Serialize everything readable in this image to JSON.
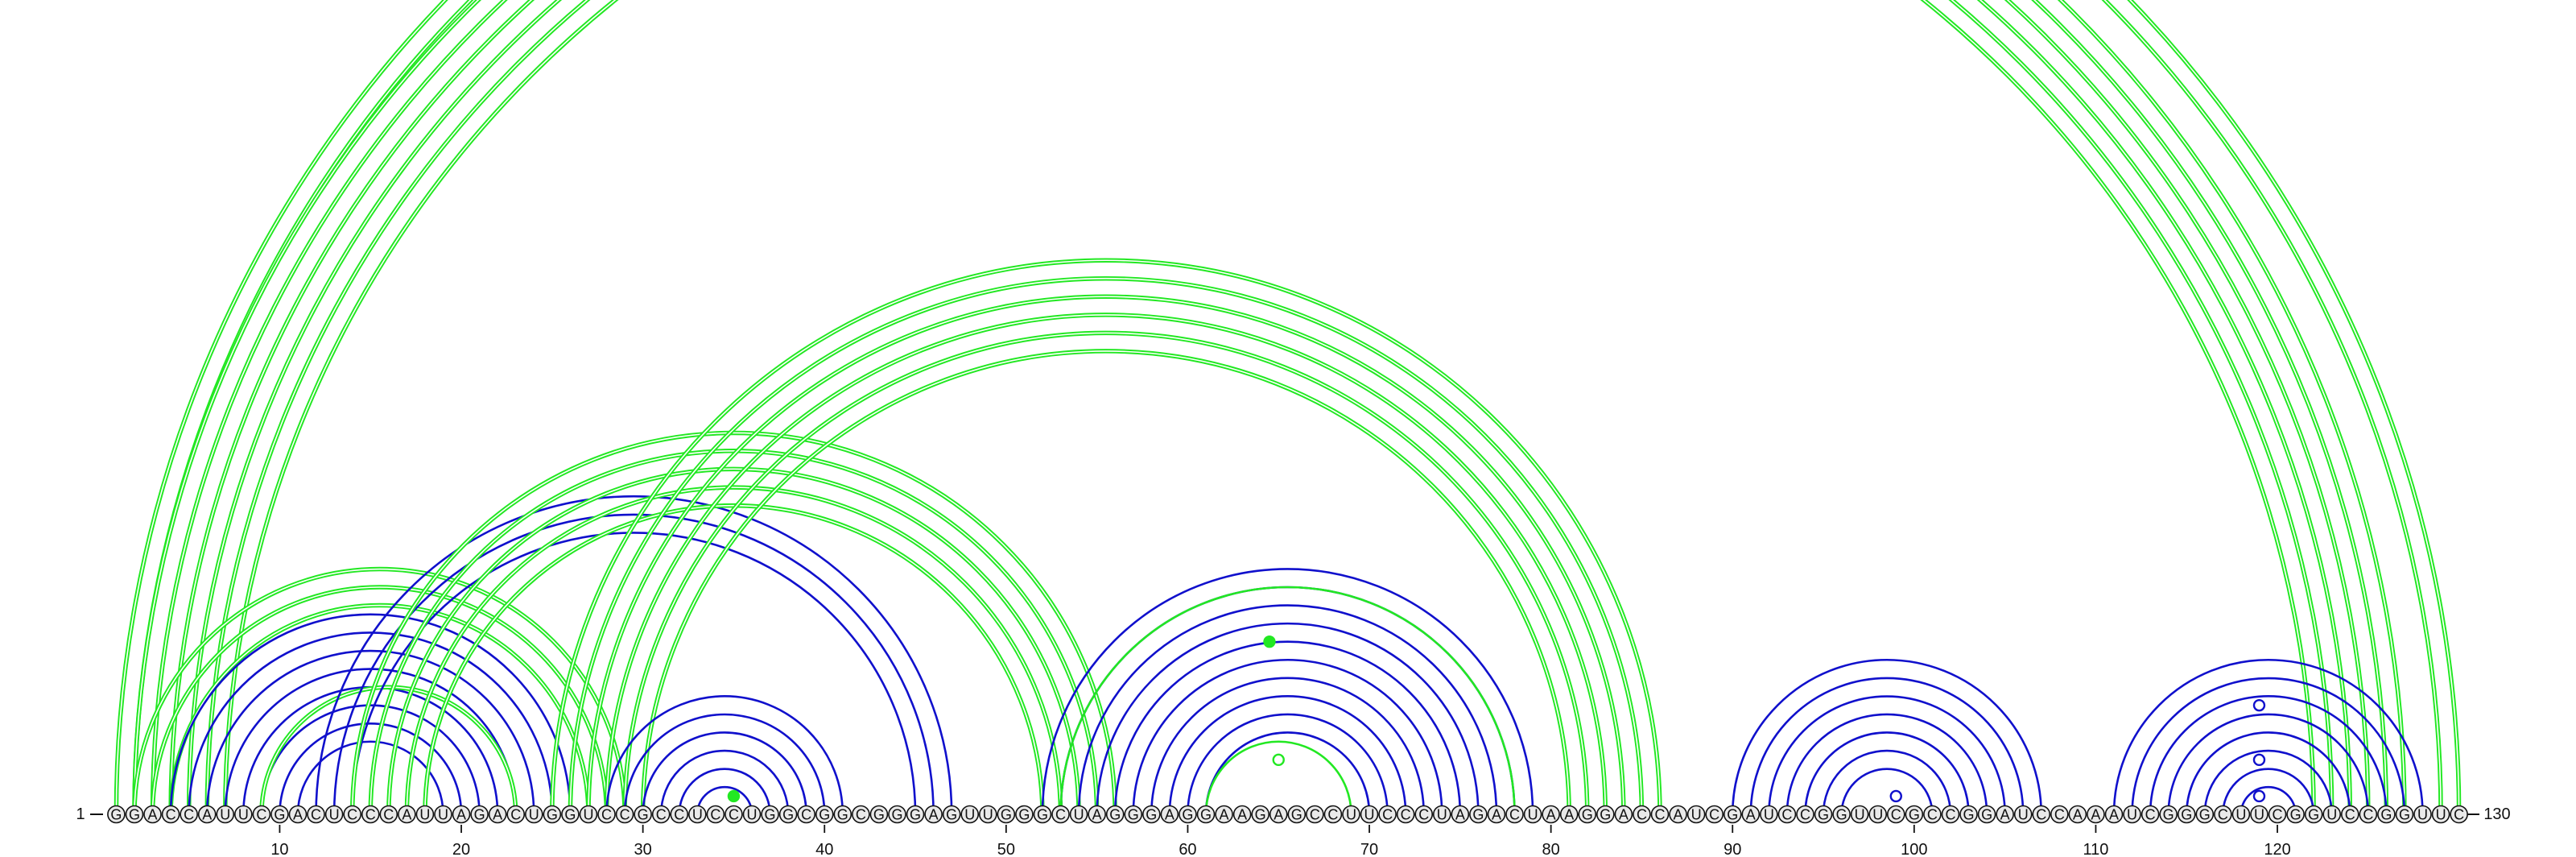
{
  "sequence": "GGACCAUUCGACUCCCAUUAGACUGGUCCGCCUCCUGGCGGCGGGAGUUGGGCUAGGGAGGAAGAGCCUUCCCUAGACUAAGGACCAUCGAUCCGGUUCGCCGGAUCCAAAUCGGGCUUCGGUCCGGUUC",
  "start_label": "1",
  "end_label": "130",
  "ticks": [
    10,
    20,
    30,
    40,
    50,
    60,
    70,
    80,
    90,
    100,
    110,
    120
  ],
  "colors": {
    "green_arc": "#22e822",
    "blue_arc": "#1010cc",
    "nucleotide_fill": "#e9e9e9",
    "nucleotide_stroke": "#111111"
  },
  "arc_groups": [
    {
      "color": "green",
      "i_start": 1,
      "j_end": 130,
      "count": 2,
      "double": true
    },
    {
      "color": "green",
      "i_start": 2,
      "j_end": 127,
      "count": 6,
      "double": true
    },
    {
      "color": "green",
      "i_start": 2,
      "j_end": 29,
      "count": 3,
      "double": true
    },
    {
      "color": "blue",
      "i_start": 4,
      "j_end": 26,
      "count": 8,
      "double": false
    },
    {
      "color": "green",
      "i_start": 9,
      "j_end": 23,
      "count": 1,
      "double": true
    },
    {
      "color": "blue",
      "i_start": 12,
      "j_end": 47,
      "count": 3,
      "double": false
    },
    {
      "color": "green",
      "i_start": 14,
      "j_end": 56,
      "count": 5,
      "double": true
    },
    {
      "color": "green",
      "i_start": 25,
      "j_end": 86,
      "count": 6,
      "double": true
    },
    {
      "color": "blue",
      "i_start": 28,
      "j_end": 41,
      "count": 6,
      "double": false
    },
    {
      "color": "blue",
      "i_start": 52,
      "j_end": 79,
      "count": 10,
      "double": false
    },
    {
      "color": "green",
      "i_start": 53,
      "j_end": 78,
      "count": 1,
      "double": false
    },
    {
      "color": "green",
      "i_start": 61,
      "j_end": 69,
      "count": 1,
      "double": false
    },
    {
      "color": "blue",
      "i_start": 90,
      "j_end": 107,
      "count": 7,
      "double": false
    },
    {
      "color": "blue",
      "i_start": 111,
      "j_end": 128,
      "count": 8,
      "double": false
    }
  ],
  "markers": [
    {
      "i": 34,
      "j": 36,
      "color": "green",
      "filled": true
    },
    {
      "i": 55,
      "j": 74,
      "color": "green",
      "filled": true
    },
    {
      "i": 62,
      "j": 68,
      "color": "green",
      "filled": false
    },
    {
      "i": 98,
      "j": 100,
      "color": "blue",
      "filled": false
    },
    {
      "i": 118,
      "j": 120,
      "color": "blue",
      "filled": false
    },
    {
      "i": 116,
      "j": 122,
      "color": "blue",
      "filled": false
    },
    {
      "i": 113,
      "j": 125,
      "color": "blue",
      "filled": false
    }
  ]
}
